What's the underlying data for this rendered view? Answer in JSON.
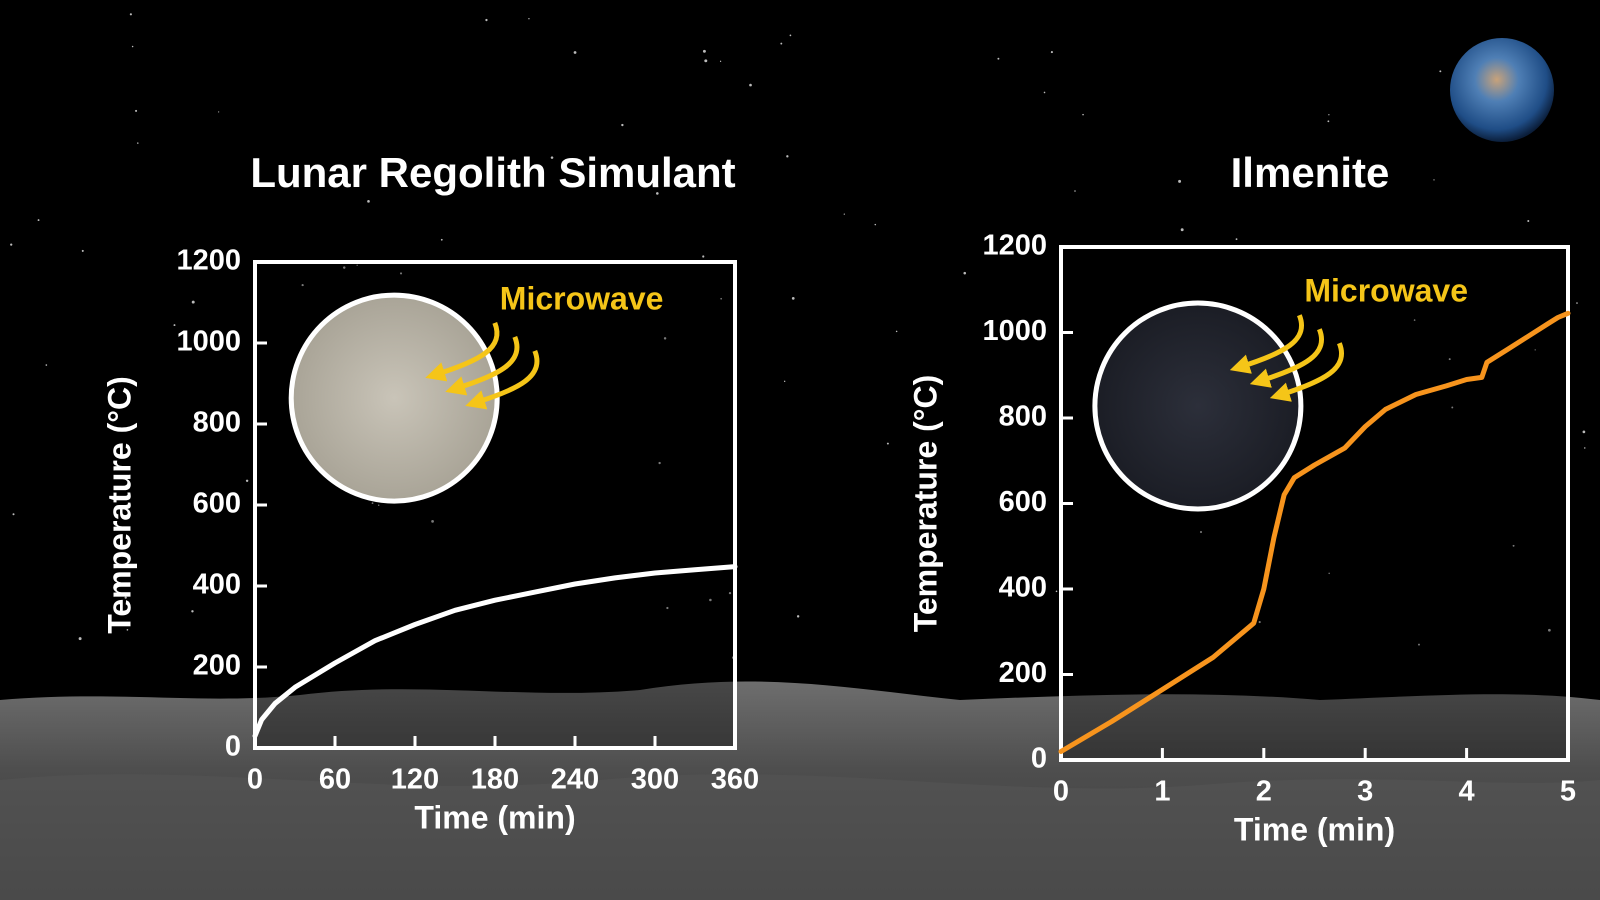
{
  "chart_data": [
    {
      "type": "line",
      "title": "Lunar Regolith Simulant",
      "xlabel": "Time (min)",
      "ylabel": "Temperature (°C)",
      "annotation": "Microwave",
      "x": [
        0,
        5,
        15,
        30,
        60,
        90,
        120,
        150,
        180,
        210,
        240,
        270,
        300,
        330,
        360
      ],
      "values": [
        30,
        70,
        110,
        150,
        210,
        265,
        305,
        340,
        365,
        385,
        405,
        420,
        432,
        440,
        448
      ],
      "color": "#ffffff",
      "xlim": [
        0,
        360
      ],
      "ylim": [
        0,
        1200
      ],
      "xticks": [
        0,
        60,
        120,
        180,
        240,
        300,
        360
      ],
      "yticks": [
        0,
        200,
        400,
        600,
        800,
        1000,
        1200
      ]
    },
    {
      "type": "line",
      "title": "Ilmenite",
      "xlabel": "Time (min)",
      "ylabel": "Temperature (°C)",
      "annotation": "Microwave",
      "x": [
        0,
        0.5,
        1,
        1.5,
        1.8,
        1.9,
        2,
        2.1,
        2.2,
        2.3,
        2.5,
        2.8,
        3,
        3.2,
        3.5,
        3.8,
        4,
        4.15,
        4.2,
        4.4,
        4.6,
        4.8,
        4.9,
        5
      ],
      "values": [
        20,
        90,
        165,
        240,
        300,
        320,
        400,
        520,
        620,
        660,
        690,
        730,
        780,
        820,
        855,
        875,
        890,
        895,
        930,
        960,
        990,
        1020,
        1035,
        1045
      ],
      "color": "#f7941d",
      "xlim": [
        0,
        5
      ],
      "ylim": [
        0,
        1200
      ],
      "xticks": [
        0,
        1,
        2,
        3,
        4,
        5
      ],
      "yticks": [
        0,
        200,
        400,
        600,
        800,
        1000,
        1200
      ]
    }
  ]
}
